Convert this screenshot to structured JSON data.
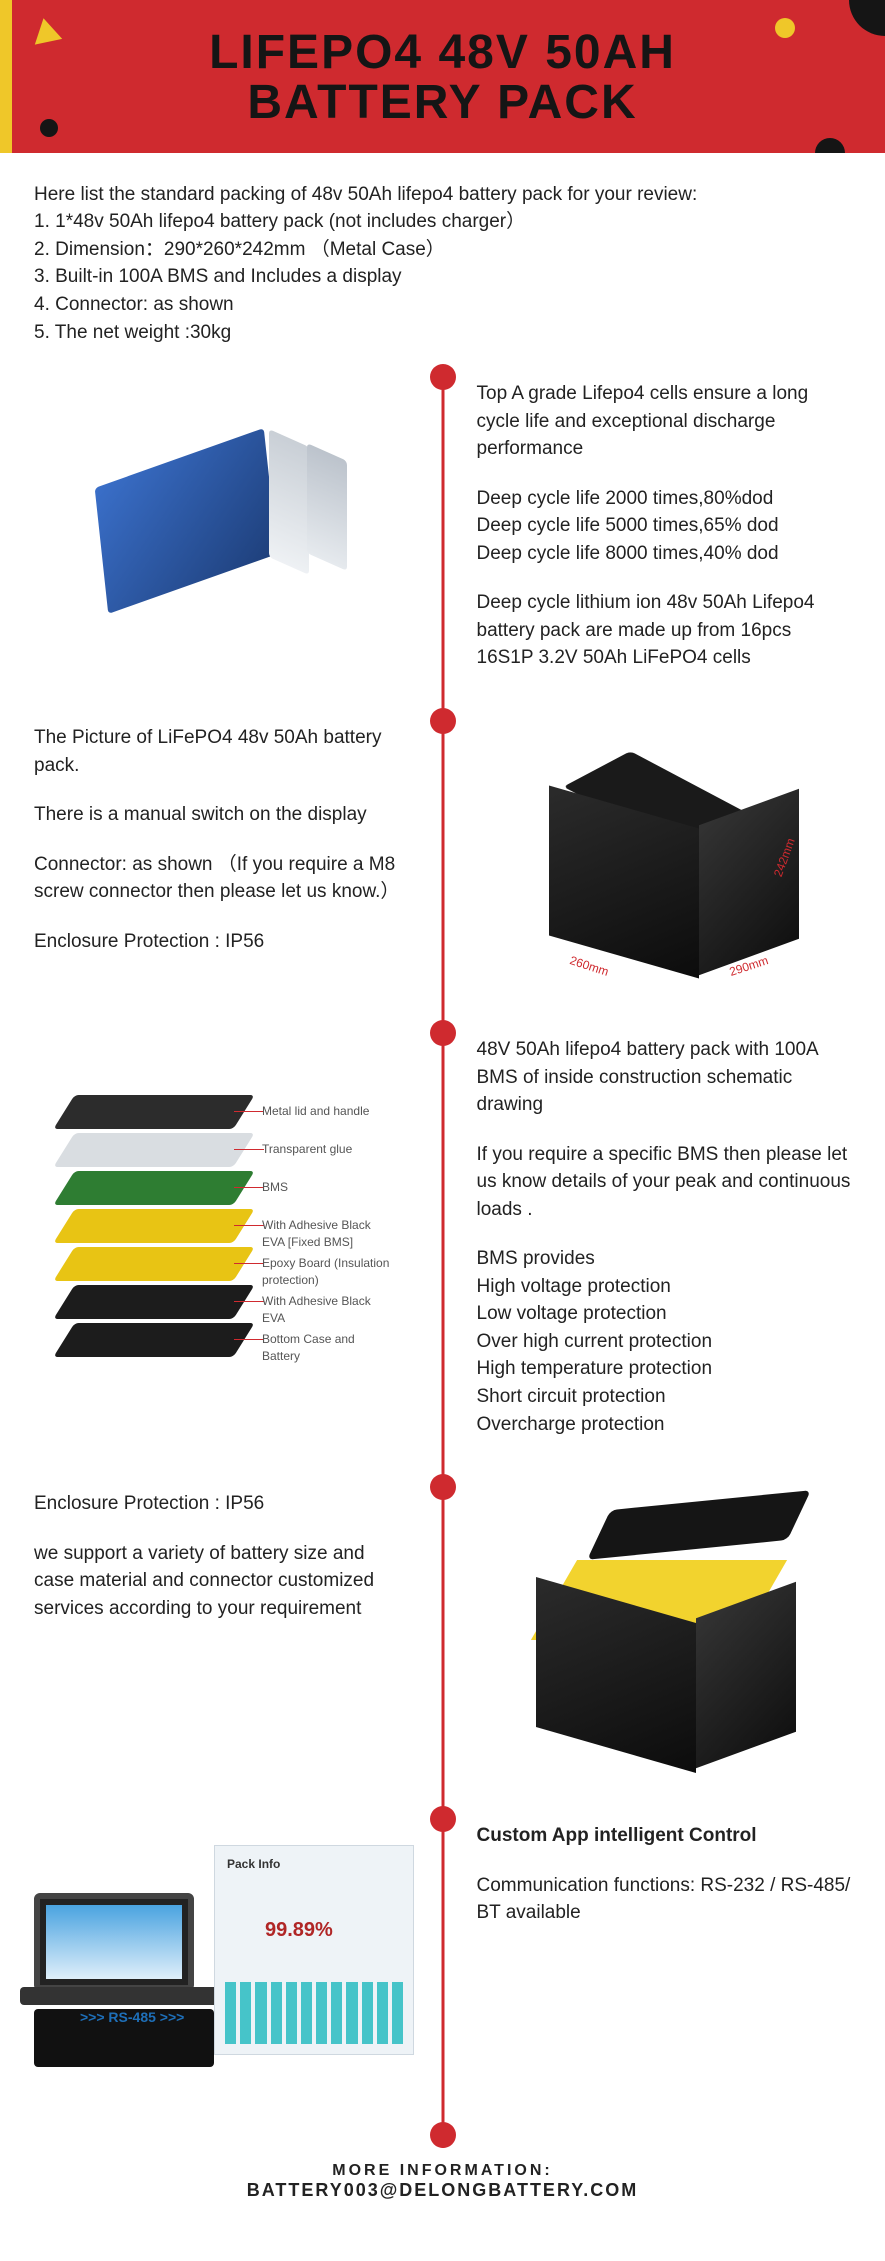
{
  "banner": {
    "title_line1": "LIFEPO4 48V 50AH",
    "title_line2": "BATTERY PACK",
    "colors": {
      "bg": "#cf2a2f",
      "accent": "#efc729",
      "dark": "#151515"
    }
  },
  "intro": {
    "lead": "Here list the standard packing of 48v 50Ah lifepo4 battery pack for your review:",
    "items": [
      "1. 1*48v 50Ah lifepo4 battery pack (not includes charger）",
      "2. Dimension：290*260*242mm （Metal Case）",
      "3. Built-in 100A BMS and Includes a display",
      "4. Connector: as shown",
      "5. The net weight :30kg"
    ]
  },
  "sec1": {
    "p1": "Top A grade Lifepo4 cells ensure a long cycle life and exceptional discharge performance",
    "c1": "Deep cycle life 2000 times,80%dod",
    "c2": "Deep cycle life 5000 times,65% dod",
    "c3": "Deep cycle life 8000 times,40% dod",
    "p2": "Deep cycle lithium ion 48v 50Ah Lifepo4 battery pack are made up from 16pcs 16S1P 3.2V 50Ah LiFePO4 cells"
  },
  "sec2": {
    "p1": "The Picture of LiFePO4 48v 50Ah battery pack.",
    "p2": "There is a manual switch on the display",
    "p3": "Connector: as shown （If you require a M8 screw connector then please let us know.）",
    "p4": "Enclosure Protection : IP56",
    "dims": {
      "w": "290mm",
      "d": "260mm",
      "h": "242mm"
    }
  },
  "sec3": {
    "p1": "48V 50Ah lifepo4 battery pack with 100A BMS of inside construction schematic drawing",
    "p2": "If you require a specific BMS then please let us know details of your peak and continuous loads .",
    "h": "BMS provides",
    "b1": "High voltage protection",
    "b2": "Low voltage protection",
    "b3": "Over high current protection",
    "b4": "High temperature protection",
    "b5": "Short circuit protection",
    "b6": "Overcharge protection",
    "layers": [
      {
        "label": "Metal lid and handle",
        "color": "#2c2c2c"
      },
      {
        "label": "Transparent glue",
        "color": "#d9dde1"
      },
      {
        "label": "BMS",
        "color": "#2e7d32"
      },
      {
        "label": "With Adhesive Black EVA [Fixed BMS]",
        "color": "#e8c414"
      },
      {
        "label": "Epoxy Board (Insulation protection)",
        "color": "#e8c414"
      },
      {
        "label": "With Adhesive Black EVA",
        "color": "#1c1c1c"
      },
      {
        "label": "Bottom Case and Battery",
        "color": "#1c1c1c"
      }
    ]
  },
  "sec4": {
    "p1": "Enclosure Protection : IP56",
    "p2": "we support a variety of battery size and case material and connector customized services according to your requirement"
  },
  "sec5": {
    "h": "Custom App intelligent Control",
    "p1": "Communication functions: RS-232 / RS-485/ BT available",
    "rs": ">>> RS-485 >>>",
    "soft_title": "Pack Info",
    "soft_pct": "99.89%"
  },
  "footer": {
    "label": "MORE INFORMATION:",
    "email": "BATTERY003@DELONGBATTERY.COM"
  }
}
